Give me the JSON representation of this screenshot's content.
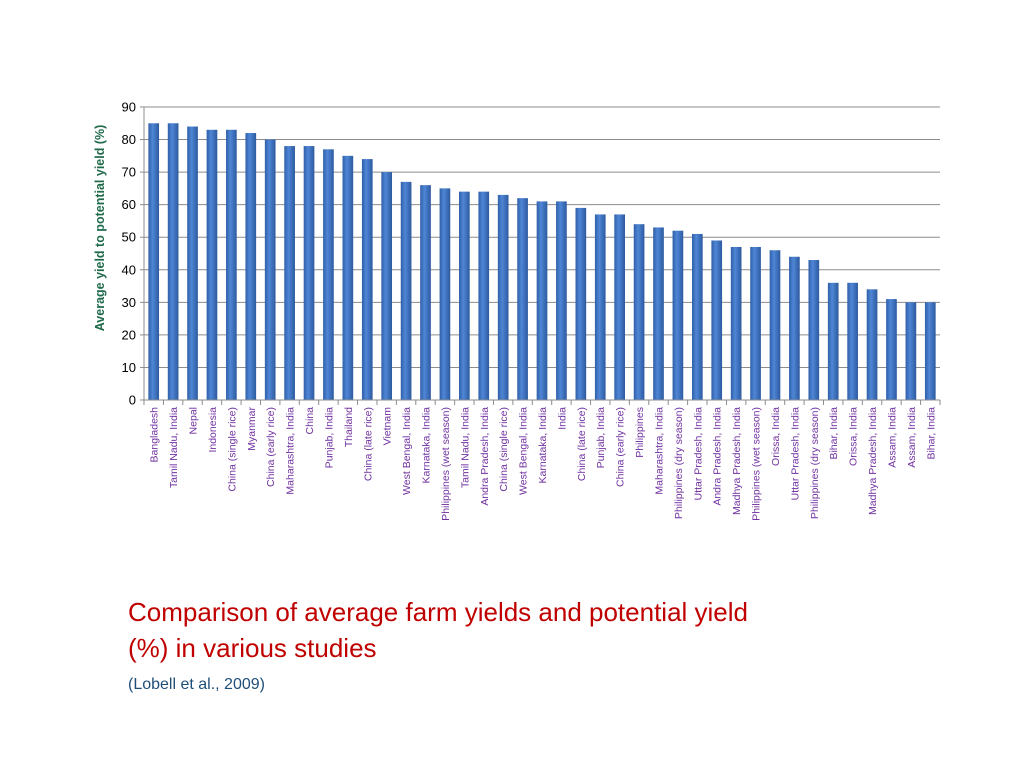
{
  "chart_data": {
    "type": "bar",
    "ylabel": "Average yield to potential yield (%)",
    "ylim": [
      0,
      90
    ],
    "yticks": [
      0,
      10,
      20,
      30,
      40,
      50,
      60,
      70,
      80,
      90
    ],
    "grid": true,
    "legend": "none",
    "bar_color": "#3a72c4",
    "ytick_label_color": "#000000",
    "xtick_label_color": "#7030a0",
    "ylabel_color": "#1f6a4a",
    "categories": [
      "Bangladesh",
      "Tamil Nadu, India",
      "Nepal",
      "Indonesia",
      "China (single rice)",
      "Myanmar",
      "China (early rice)",
      "Maharashtra, India",
      "China",
      "Punjab, India",
      "Thailand",
      "China (late rice)",
      "Vietnam",
      "West Bengal, India",
      "Karnataka, India",
      "Philippines (wet season)",
      "Tamil Nadu, India",
      "Andra Pradesh, India",
      "China (single rice)",
      "West Bengal, India",
      "Karnataka, India",
      "India",
      "China (late rice)",
      "Punjab, India",
      "China (early rice)",
      "Philippines",
      "Maharashtra, India",
      "Philippines (dry season)",
      "Uttar Pradesh, India",
      "Andra Pradesh, India",
      "Madhya Pradesh, India",
      "Philippines (wet season)",
      "Orissa, India",
      "Uttar Pradesh, India",
      "Philippines (dry season)",
      "Bihar, India",
      "Orissa, India",
      "Madhya Pradesh, India",
      "Assam, India",
      "Assam, India",
      "Bihar, India"
    ],
    "values": [
      85,
      85,
      84,
      83,
      83,
      82,
      80,
      78,
      78,
      77,
      75,
      74,
      70,
      67,
      66,
      65,
      64,
      64,
      63,
      62,
      61,
      61,
      59,
      57,
      57,
      54,
      53,
      52,
      51,
      49,
      47,
      47,
      46,
      44,
      43,
      36,
      36,
      34,
      31,
      30,
      30
    ]
  },
  "caption": {
    "title_line1": "Comparison of average farm yields and potential yield",
    "title_line2": "(%) in various studies",
    "source": "(Lobell et al., 2009)",
    "title_color": "#c00000",
    "source_color": "#1f4e79"
  }
}
